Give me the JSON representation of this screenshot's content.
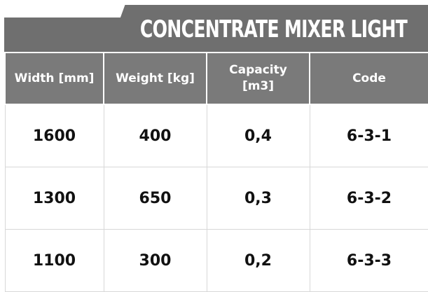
{
  "title": "CONCENTRATE MIXER LIGHT",
  "table": {
    "headers": [
      {
        "line1": "Width [mm]",
        "line2": ""
      },
      {
        "line1": "Weight [kg]",
        "line2": ""
      },
      {
        "line1": "Capacity",
        "line2": "[m3]"
      },
      {
        "line1": "Code",
        "line2": ""
      }
    ],
    "rows": [
      [
        "1600",
        "400",
        "0,4",
        "6-3-1"
      ],
      [
        "1300",
        "650",
        "0,3",
        "6-3-2"
      ],
      [
        "1100",
        "300",
        "0,2",
        "6-3-3"
      ]
    ]
  }
}
